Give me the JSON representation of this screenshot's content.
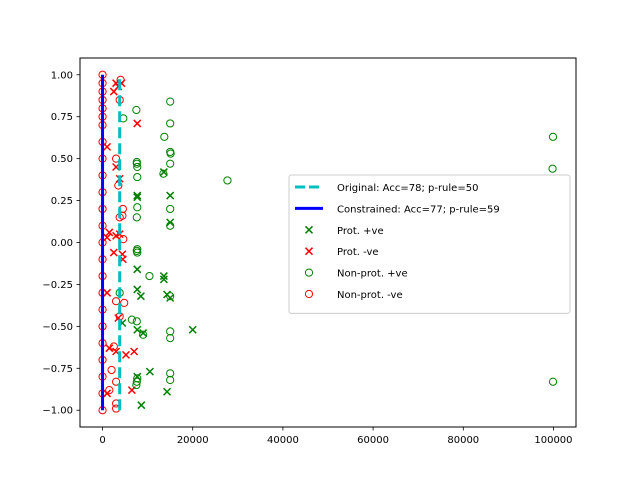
{
  "chart_data": {
    "type": "scatter",
    "title": "",
    "xlabel": "",
    "ylabel": "",
    "xlim": [
      -5000,
      105000
    ],
    "ylim": [
      -1.1,
      1.1
    ],
    "x_ticks": [
      0,
      20000,
      40000,
      60000,
      80000,
      100000
    ],
    "x_tick_labels": [
      "0",
      "20000",
      "40000",
      "60000",
      "80000",
      "100000"
    ],
    "y_ticks": [
      -1.0,
      -0.75,
      -0.5,
      -0.25,
      0.0,
      0.25,
      0.5,
      0.75,
      1.0
    ],
    "y_tick_labels": [
      "−1.00",
      "−0.75",
      "−0.50",
      "−0.25",
      "0.00",
      "0.25",
      "0.50",
      "0.75",
      "1.00"
    ],
    "grid": false,
    "legend_placement": "center-right",
    "colors": {
      "original": "#00bfbf",
      "constrained": "#0000ff",
      "positive": "#008000",
      "negative": "#ff0000"
    },
    "lines": [
      {
        "name": "Original: Acc=78; p-rule=50",
        "style": "dashed",
        "x": [
          3800,
          3800
        ],
        "y": [
          -1.0,
          1.0
        ]
      },
      {
        "name": "Constrained: Acc=77; p-rule=59",
        "style": "solid",
        "x": [
          0,
          0
        ],
        "y": [
          -1.0,
          1.0
        ]
      }
    ],
    "series": [
      {
        "name": "Prot. +ve",
        "marker": "x",
        "points": [
          [
            7700,
            0.28
          ],
          [
            7700,
            0.27
          ],
          [
            13600,
            0.42
          ],
          [
            15000,
            0.28
          ],
          [
            15000,
            0.12
          ],
          [
            7700,
            -0.16
          ],
          [
            7700,
            -0.28
          ],
          [
            8500,
            -0.32
          ],
          [
            13600,
            -0.2
          ],
          [
            13600,
            -0.22
          ],
          [
            14300,
            -0.31
          ],
          [
            15000,
            -0.33
          ],
          [
            4400,
            -0.48
          ],
          [
            7700,
            -0.52
          ],
          [
            9000,
            -0.54
          ],
          [
            20000,
            -0.52
          ],
          [
            10500,
            -0.77
          ],
          [
            7700,
            -0.8
          ],
          [
            14300,
            -0.89
          ],
          [
            8600,
            -0.97
          ]
        ]
      },
      {
        "name": "Prot. -ve",
        "marker": "x",
        "points": [
          [
            3000,
            0.95
          ],
          [
            3500,
            0.93
          ],
          [
            4200,
            0.95
          ],
          [
            2500,
            0.9
          ],
          [
            7700,
            0.71
          ],
          [
            1000,
            0.57
          ],
          [
            3000,
            0.45
          ],
          [
            3800,
            0.38
          ],
          [
            1500,
            0.06
          ],
          [
            3000,
            0.04
          ],
          [
            3800,
            0.05
          ],
          [
            1000,
            0.03
          ],
          [
            2500,
            -0.06
          ],
          [
            4400,
            -0.07
          ],
          [
            4500,
            -0.1
          ],
          [
            1000,
            -0.3
          ],
          [
            3500,
            -0.45
          ],
          [
            1500,
            -0.63
          ],
          [
            3000,
            -0.65
          ],
          [
            7000,
            -0.65
          ],
          [
            5200,
            -0.67
          ],
          [
            6500,
            -0.88
          ],
          [
            1000,
            -0.9
          ]
        ]
      },
      {
        "name": "Non-prot. +ve",
        "marker": "o",
        "points": [
          [
            7500,
            0.79
          ],
          [
            15000,
            0.84
          ],
          [
            4600,
            0.74
          ],
          [
            15000,
            0.71
          ],
          [
            13700,
            0.63
          ],
          [
            15000,
            0.54
          ],
          [
            15100,
            0.53
          ],
          [
            7600,
            0.48
          ],
          [
            7600,
            0.47
          ],
          [
            15000,
            0.47
          ],
          [
            7700,
            0.45
          ],
          [
            7700,
            0.39
          ],
          [
            13500,
            0.41
          ],
          [
            27700,
            0.37
          ],
          [
            99900,
            0.63
          ],
          [
            99800,
            0.44
          ],
          [
            15000,
            0.2
          ],
          [
            15000,
            0.1
          ],
          [
            7600,
            0.15
          ],
          [
            7700,
            0.21
          ],
          [
            7600,
            -0.05
          ],
          [
            7700,
            -0.06
          ],
          [
            7700,
            -0.04
          ],
          [
            10400,
            -0.2
          ],
          [
            15000,
            -0.32
          ],
          [
            3800,
            -0.3
          ],
          [
            6500,
            -0.46
          ],
          [
            7600,
            -0.47
          ],
          [
            15000,
            -0.53
          ],
          [
            15000,
            -0.57
          ],
          [
            9000,
            -0.55
          ],
          [
            7700,
            -0.81
          ],
          [
            7600,
            -0.83
          ],
          [
            7500,
            -0.85
          ],
          [
            15000,
            -0.78
          ],
          [
            15000,
            -0.82
          ],
          [
            99900,
            -0.83
          ]
        ]
      },
      {
        "name": "Non-prot. -ve",
        "marker": "o",
        "points": [
          [
            0,
            1.0
          ],
          [
            0,
            0.95
          ],
          [
            0,
            0.9
          ],
          [
            0,
            0.85
          ],
          [
            0,
            0.8
          ],
          [
            0,
            0.75
          ],
          [
            0,
            0.7
          ],
          [
            0,
            0.6
          ],
          [
            0,
            0.5
          ],
          [
            0,
            0.4
          ],
          [
            0,
            0.3
          ],
          [
            0,
            0.2
          ],
          [
            0,
            0.1
          ],
          [
            0,
            0.0
          ],
          [
            0,
            -0.1
          ],
          [
            0,
            -0.2
          ],
          [
            0,
            -0.3
          ],
          [
            0,
            -0.4
          ],
          [
            0,
            -0.5
          ],
          [
            0,
            -0.6
          ],
          [
            0,
            -0.7
          ],
          [
            0,
            -0.8
          ],
          [
            0,
            -0.9
          ],
          [
            0,
            -1.0
          ],
          [
            4000,
            0.97
          ],
          [
            3800,
            0.85
          ],
          [
            3000,
            0.5
          ],
          [
            3500,
            0.34
          ],
          [
            3800,
            0.15
          ],
          [
            4400,
            0.16
          ],
          [
            4600,
            0.02
          ],
          [
            4500,
            0.2
          ],
          [
            3000,
            -0.35
          ],
          [
            3800,
            -0.44
          ],
          [
            4800,
            -0.36
          ],
          [
            2500,
            -0.62
          ],
          [
            1500,
            -0.88
          ],
          [
            3000,
            -0.96
          ],
          [
            3000,
            -0.99
          ],
          [
            2000,
            -0.76
          ],
          [
            3000,
            -0.83
          ]
        ]
      }
    ]
  }
}
